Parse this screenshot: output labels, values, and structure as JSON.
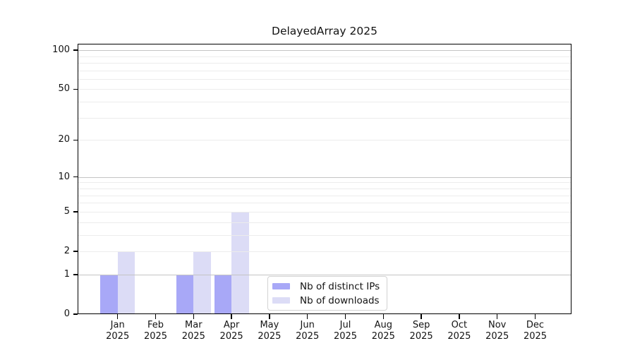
{
  "title": "DelayedArray 2025",
  "chart_data": {
    "type": "bar",
    "title": "DelayedArray 2025",
    "categories": [
      "Jan 2025",
      "Feb 2025",
      "Mar 2025",
      "Apr 2025",
      "May 2025",
      "Jun 2025",
      "Jul 2025",
      "Aug 2025",
      "Sep 2025",
      "Oct 2025",
      "Nov 2025",
      "Dec 2025"
    ],
    "month_line": [
      "Jan",
      "Feb",
      "Mar",
      "Apr",
      "May",
      "Jun",
      "Jul",
      "Aug",
      "Sep",
      "Oct",
      "Nov",
      "Dec"
    ],
    "year_line": "2025",
    "series": [
      {
        "name": "Nb of distinct IPs",
        "color": "#a8a8f7",
        "values": [
          1,
          0,
          1,
          1,
          0,
          0,
          0,
          0,
          0,
          0,
          0,
          0
        ]
      },
      {
        "name": "Nb of downloads",
        "color": "#dcdcf6",
        "values": [
          2,
          0,
          2,
          5,
          0,
          0,
          0,
          0,
          0,
          0,
          0,
          0
        ]
      }
    ],
    "xlabel": "",
    "ylabel": "",
    "y_scale": "log10(1+x)",
    "y_axis_top": 112,
    "y_ticks": [
      0,
      1,
      2,
      5,
      10,
      20,
      50,
      100
    ],
    "gridlines": {
      "major": [
        1,
        10,
        100
      ],
      "minor": [
        2,
        3,
        4,
        5,
        6,
        7,
        8,
        9,
        20,
        30,
        40,
        50,
        60,
        70,
        80,
        90
      ]
    },
    "grid": true,
    "legend_position": "lower center",
    "legend_labels": [
      "Nb of distinct IPs",
      "Nb of downloads"
    ]
  },
  "colors": {
    "bar_distinct_ips": "#a8a8f7",
    "bar_downloads": "#dcdcf6",
    "major_grid": "#c4c4c4",
    "minor_grid": "#ececec",
    "spine": "#000000",
    "legend_border": "#d2d2d2"
  }
}
